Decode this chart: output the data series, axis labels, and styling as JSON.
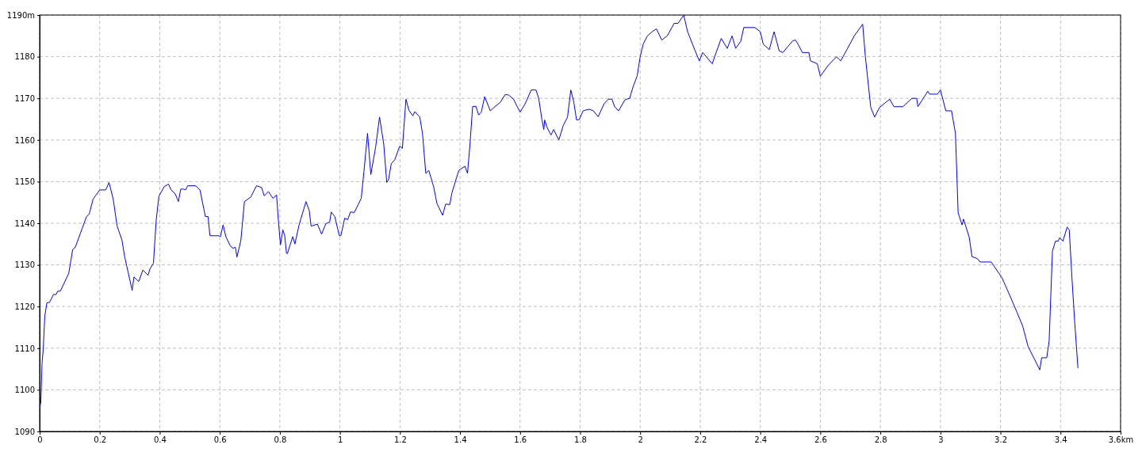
{
  "chart_data": {
    "type": "line",
    "x": [
      0.001,
      0.004,
      0.008,
      0.012,
      0.017,
      0.024,
      0.033,
      0.046,
      0.055,
      0.06,
      0.069,
      0.097,
      0.11,
      0.119,
      0.156,
      0.165,
      0.178,
      0.2,
      0.22,
      0.231,
      0.245,
      0.258,
      0.274,
      0.283,
      0.308,
      0.314,
      0.33,
      0.344,
      0.354,
      0.361,
      0.367,
      0.379,
      0.388,
      0.397,
      0.415,
      0.429,
      0.438,
      0.452,
      0.462,
      0.47,
      0.479,
      0.486,
      0.493,
      0.52,
      0.534,
      0.552,
      0.561,
      0.567,
      0.597,
      0.602,
      0.611,
      0.62,
      0.634,
      0.643,
      0.652,
      0.657,
      0.67,
      0.682,
      0.703,
      0.722,
      0.739,
      0.748,
      0.762,
      0.777,
      0.789,
      0.795,
      0.802,
      0.81,
      0.816,
      0.822,
      0.825,
      0.843,
      0.85,
      0.864,
      0.887,
      0.898,
      0.904,
      0.925,
      0.939,
      0.953,
      0.966,
      0.971,
      0.983,
      0.998,
      1.003,
      1.016,
      1.026,
      1.035,
      1.048,
      1.071,
      1.08,
      1.092,
      1.103,
      1.119,
      1.132,
      1.146,
      1.156,
      1.162,
      1.171,
      1.183,
      1.199,
      1.208,
      1.22,
      1.23,
      1.243,
      1.249,
      1.266,
      1.275,
      1.286,
      1.296,
      1.312,
      1.323,
      1.342,
      1.352,
      1.366,
      1.373,
      1.396,
      1.416,
      1.425,
      1.433,
      1.442,
      1.453,
      1.462,
      1.471,
      1.482,
      1.501,
      1.516,
      1.535,
      1.55,
      1.562,
      1.578,
      1.6,
      1.617,
      1.637,
      1.653,
      1.662,
      1.673,
      1.679,
      1.682,
      1.69,
      1.703,
      1.712,
      1.729,
      1.744,
      1.758,
      1.769,
      1.779,
      1.788,
      1.797,
      1.81,
      1.83,
      1.844,
      1.86,
      1.88,
      1.894,
      1.906,
      1.915,
      1.928,
      1.949,
      1.955,
      1.965,
      1.976,
      1.99,
      2.0,
      2.01,
      2.024,
      2.04,
      2.054,
      2.072,
      2.09,
      2.113,
      2.126,
      2.145,
      2.158,
      2.182,
      2.197,
      2.208,
      2.22,
      2.24,
      2.253,
      2.27,
      2.29,
      2.306,
      2.318,
      2.335,
      2.345,
      2.382,
      2.4,
      2.41,
      2.43,
      2.446,
      2.463,
      2.475,
      2.508,
      2.517,
      2.526,
      2.54,
      2.562,
      2.567,
      2.59,
      2.6,
      2.627,
      2.654,
      2.668,
      2.69,
      2.713,
      2.741,
      2.75,
      2.768,
      2.781,
      2.797,
      2.831,
      2.845,
      2.875,
      2.905,
      2.921,
      2.925,
      2.958,
      2.964,
      2.99,
      3.0,
      3.018,
      3.037,
      3.05,
      3.055,
      3.059,
      3.072,
      3.077,
      3.096,
      3.105,
      3.123,
      3.132,
      3.169,
      3.205,
      3.232,
      3.255,
      3.274,
      3.292,
      3.331,
      3.337,
      3.354,
      3.362,
      3.373,
      3.383,
      3.392,
      3.397,
      3.408,
      3.422,
      3.429,
      3.438,
      3.447,
      3.458
    ],
    "series": [
      {
        "color": "#0000ff",
        "values": [
          1096,
          1097,
          1106.5,
          1109.8,
          1117.6,
          1120.9,
          1121,
          1122.9,
          1122.9,
          1123.7,
          1123.7,
          1128,
          1133.7,
          1134.3,
          1141.6,
          1142.2,
          1145.8,
          1148,
          1148,
          1149.8,
          1145.8,
          1139.3,
          1136,
          1132,
          1123.9,
          1127.1,
          1126,
          1128.8,
          1128,
          1127.5,
          1129,
          1130.4,
          1140.6,
          1146.5,
          1148.8,
          1149.4,
          1148,
          1147,
          1145.2,
          1148.2,
          1148.2,
          1148,
          1149,
          1149,
          1148,
          1141.6,
          1141.6,
          1137,
          1137,
          1136.8,
          1139.6,
          1136.8,
          1134.7,
          1134,
          1134.2,
          1131.9,
          1135.8,
          1145.2,
          1146.3,
          1149,
          1148.6,
          1146.6,
          1147.6,
          1146,
          1146.8,
          1140.7,
          1134.8,
          1138.4,
          1137.1,
          1132.8,
          1132.7,
          1136.8,
          1135,
          1139.6,
          1145.2,
          1143,
          1139.3,
          1139.8,
          1137.4,
          1139.9,
          1140.3,
          1142.7,
          1141.6,
          1137,
          1137,
          1141.2,
          1140.9,
          1142.7,
          1142.6,
          1146,
          1152.4,
          1161.6,
          1151.7,
          1158.3,
          1165.5,
          1159,
          1149.8,
          1150.5,
          1154.3,
          1155.3,
          1158.5,
          1158,
          1169.8,
          1167.1,
          1165.8,
          1166.8,
          1165.5,
          1161.6,
          1152,
          1152.7,
          1148.8,
          1144.8,
          1141.9,
          1144.6,
          1144.5,
          1147.3,
          1152.7,
          1153.7,
          1152,
          1158.8,
          1168,
          1168.1,
          1166,
          1166.7,
          1170.4,
          1167,
          1168,
          1169.1,
          1170.9,
          1170.8,
          1169.8,
          1166.7,
          1168.7,
          1172,
          1172,
          1170,
          1164.8,
          1162.5,
          1164.8,
          1163,
          1161.2,
          1162.5,
          1160,
          1163.5,
          1165.5,
          1172,
          1169.1,
          1164.8,
          1164.9,
          1167,
          1167.4,
          1167,
          1165.6,
          1168.7,
          1169.8,
          1169.8,
          1168,
          1167,
          1169.6,
          1169.8,
          1170,
          1172.7,
          1175.4,
          1180,
          1183,
          1185,
          1186,
          1186.7,
          1184,
          1185,
          1188,
          1188,
          1190,
          1186,
          1181.6,
          1179,
          1181,
          1180,
          1178.3,
          1181,
          1184.4,
          1182,
          1185,
          1182,
          1183.7,
          1187,
          1187,
          1186,
          1183,
          1181.7,
          1186,
          1181.4,
          1181,
          1183.8,
          1184,
          1183,
          1181,
          1181,
          1179,
          1178.3,
          1175.3,
          1178,
          1180,
          1179,
          1181.9,
          1185,
          1187.8,
          1180,
          1167.8,
          1165.5,
          1167.8,
          1169.8,
          1168,
          1168,
          1170,
          1170,
          1168,
          1171.7,
          1171,
          1171,
          1172,
          1167,
          1167,
          1161.6,
          1151,
          1142.5,
          1139.6,
          1141,
          1136.6,
          1132,
          1131.5,
          1130.7,
          1130.7,
          1126.9,
          1122.5,
          1118.6,
          1115.3,
          1110.4,
          1104.8,
          1107.7,
          1107.7,
          1111.7,
          1133.3,
          1135.7,
          1135.7,
          1136.5,
          1135.7,
          1139.1,
          1138.4,
          1126.9,
          1116.4,
          1105.2
        ]
      }
    ],
    "xlim": [
      0,
      3.6
    ],
    "xticks": [
      0,
      0.2,
      0.4,
      0.6,
      0.8,
      1,
      1.2,
      1.4,
      1.6,
      1.8,
      2,
      2.2,
      2.4,
      2.6,
      2.8,
      3,
      3.2,
      3.4,
      {
        "value": 3.6,
        "label": "3.6km"
      }
    ],
    "ylim": [
      1090,
      1190
    ],
    "yticks": [
      1090,
      1100,
      1110,
      1120,
      1130,
      1140,
      1150,
      1160,
      1170,
      1180,
      {
        "value": 1190,
        "label": "1190m"
      }
    ],
    "grid": true,
    "marker": "none",
    "line_style": "solid"
  }
}
